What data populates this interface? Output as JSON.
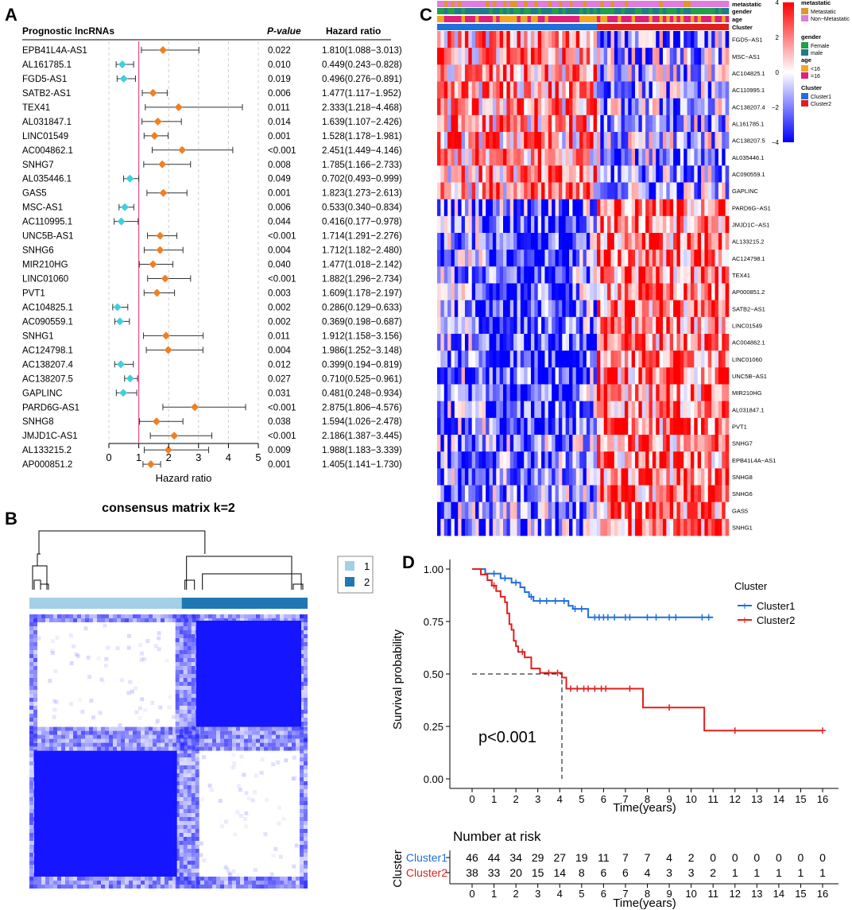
{
  "colors": {
    "orange": "#f07f23",
    "cyan": "#3ed0e0",
    "refline": "#e84b8a",
    "cluster1": "#1f6fdc",
    "cluster2": "#e0201f",
    "cons_light": "#a3d0e6",
    "cons_dark": "#1f78b4",
    "cons_block": "#1515ff",
    "heat_high": "#ff0000",
    "heat_low": "#0000ff",
    "ann_metastatic": "#e0962b",
    "ann_nonmetastatic": "#e07be0",
    "ann_female": "#1fa04b",
    "ann_male": "#1f7b8a",
    "ann_age_lt16": "#f5a623",
    "ann_age_ge16": "#e0207b"
  },
  "panel_labels": {
    "a": "A",
    "b": "B",
    "c": "C",
    "d": "D"
  },
  "chart_data": [
    {
      "type": "forest",
      "panel": "A",
      "header": {
        "name": "Prognostic lncRNAs",
        "pvalue": "P-value",
        "hr": "Hazard ratio"
      },
      "xlabel": "Hazard ratio",
      "xlim": [
        0,
        5
      ],
      "ticks": [
        "0",
        "1",
        "2",
        "3",
        "4",
        "5"
      ],
      "reference": 1,
      "rows": [
        {
          "name": "EPB41L4A-AS1",
          "p": "0.022",
          "hr_text": "1.810(1.088−3.013)",
          "hr": 1.81,
          "lo": 1.088,
          "hi": 3.013
        },
        {
          "name": "AL161785.1",
          "p": "0.010",
          "hr_text": "0.449(0.243−0.828)",
          "hr": 0.449,
          "lo": 0.243,
          "hi": 0.828
        },
        {
          "name": "FGD5-AS1",
          "p": "0.019",
          "hr_text": "0.496(0.276−0.891)",
          "hr": 0.496,
          "lo": 0.276,
          "hi": 0.891
        },
        {
          "name": "SATB2-AS1",
          "p": "0.006",
          "hr_text": "1.477(1.117−1.952)",
          "hr": 1.477,
          "lo": 1.117,
          "hi": 1.952
        },
        {
          "name": "TEX41",
          "p": "0.011",
          "hr_text": "2.333(1.218−4.468)",
          "hr": 2.333,
          "lo": 1.218,
          "hi": 4.468
        },
        {
          "name": "AL031847.1",
          "p": "0.014",
          "hr_text": "1.639(1.107−2.426)",
          "hr": 1.639,
          "lo": 1.107,
          "hi": 2.426
        },
        {
          "name": "LINC01549",
          "p": "0.001",
          "hr_text": "1.528(1.178−1.981)",
          "hr": 1.528,
          "lo": 1.178,
          "hi": 1.981
        },
        {
          "name": "AC004862.1",
          "p": "<0.001",
          "hr_text": "2.451(1.449−4.146)",
          "hr": 2.451,
          "lo": 1.449,
          "hi": 4.146
        },
        {
          "name": "SNHG7",
          "p": "0.008",
          "hr_text": "1.785(1.166−2.733)",
          "hr": 1.785,
          "lo": 1.166,
          "hi": 2.733
        },
        {
          "name": "AL035446.1",
          "p": "0.049",
          "hr_text": "0.702(0.493−0.999)",
          "hr": 0.702,
          "lo": 0.493,
          "hi": 0.999
        },
        {
          "name": "GAS5",
          "p": "0.001",
          "hr_text": "1.823(1.273−2.613)",
          "hr": 1.823,
          "lo": 1.273,
          "hi": 2.613
        },
        {
          "name": "MSC-AS1",
          "p": "0.006",
          "hr_text": "0.533(0.340−0.834)",
          "hr": 0.533,
          "lo": 0.34,
          "hi": 0.834
        },
        {
          "name": "AC110995.1",
          "p": "0.044",
          "hr_text": "0.416(0.177−0.978)",
          "hr": 0.416,
          "lo": 0.177,
          "hi": 0.978
        },
        {
          "name": "UNC5B-AS1",
          "p": "<0.001",
          "hr_text": "1.714(1.291−2.276)",
          "hr": 1.714,
          "lo": 1.291,
          "hi": 2.276
        },
        {
          "name": "SNHG6",
          "p": "0.004",
          "hr_text": "1.712(1.182−2.480)",
          "hr": 1.712,
          "lo": 1.182,
          "hi": 2.48
        },
        {
          "name": "MIR210HG",
          "p": "0.040",
          "hr_text": "1.477(1.018−2.142)",
          "hr": 1.477,
          "lo": 1.018,
          "hi": 2.142
        },
        {
          "name": "LINC01060",
          "p": "<0.001",
          "hr_text": "1.882(1.296−2.734)",
          "hr": 1.882,
          "lo": 1.296,
          "hi": 2.734
        },
        {
          "name": "PVT1",
          "p": "0.003",
          "hr_text": "1.609(1.178−2.197)",
          "hr": 1.609,
          "lo": 1.178,
          "hi": 2.197
        },
        {
          "name": "AC104825.1",
          "p": "0.002",
          "hr_text": "0.286(0.129−0.633)",
          "hr": 0.286,
          "lo": 0.129,
          "hi": 0.633
        },
        {
          "name": "AC090559.1",
          "p": "0.002",
          "hr_text": "0.369(0.198−0.687)",
          "hr": 0.369,
          "lo": 0.198,
          "hi": 0.687
        },
        {
          "name": "SNHG1",
          "p": "0.011",
          "hr_text": "1.912(1.158−3.156)",
          "hr": 1.912,
          "lo": 1.158,
          "hi": 3.156
        },
        {
          "name": "AC124798.1",
          "p": "0.004",
          "hr_text": "1.986(1.252−3.148)",
          "hr": 1.986,
          "lo": 1.252,
          "hi": 3.148
        },
        {
          "name": "AC138207.4",
          "p": "0.012",
          "hr_text": "0.399(0.194−0.819)",
          "hr": 0.399,
          "lo": 0.194,
          "hi": 0.819
        },
        {
          "name": "AC138207.5",
          "p": "0.027",
          "hr_text": "0.710(0.525−0.961)",
          "hr": 0.71,
          "lo": 0.525,
          "hi": 0.961
        },
        {
          "name": "GAPLINC",
          "p": "0.031",
          "hr_text": "0.481(0.248−0.934)",
          "hr": 0.481,
          "lo": 0.248,
          "hi": 0.934
        },
        {
          "name": "PARD6G-AS1",
          "p": "<0.001",
          "hr_text": "2.875(1.806−4.576)",
          "hr": 2.875,
          "lo": 1.806,
          "hi": 4.576
        },
        {
          "name": "SNHG8",
          "p": "0.038",
          "hr_text": "1.594(1.026−2.478)",
          "hr": 1.594,
          "lo": 1.026,
          "hi": 2.478
        },
        {
          "name": "JMJD1C-AS1",
          "p": "<0.001",
          "hr_text": "2.186(1.387−3.445)",
          "hr": 2.186,
          "lo": 1.387,
          "hi": 3.445
        },
        {
          "name": "AL133215.2",
          "p": "0.009",
          "hr_text": "1.988(1.183−3.339)",
          "hr": 1.988,
          "lo": 1.183,
          "hi": 3.339
        },
        {
          "name": "AP000851.2",
          "p": "0.001",
          "hr_text": "1.405(1.141−1.730)",
          "hr": 1.405,
          "lo": 1.141,
          "hi": 1.73
        }
      ]
    },
    {
      "type": "heatmap",
      "panel": "B",
      "title": "consensus matrix k=2",
      "legend": [
        "1",
        "2"
      ],
      "cluster_sizes": [
        46,
        38
      ]
    },
    {
      "type": "heatmap",
      "panel": "C",
      "genes": [
        "FGD5−AS1",
        "MSC−AS1",
        "AC104825.1",
        "AC110995.1",
        "AC138207.4",
        "AL161785.1",
        "AC138207.5",
        "AL035446.1",
        "AC090559.1",
        "GAPLINC",
        "PARD6G−AS1",
        "JMJD1C−AS1",
        "AL133215.2",
        "AC124798.1",
        "TEX41",
        "AP000851.2",
        "SATB2−AS1",
        "LINC01549",
        "AC004862.1",
        "LINC01060",
        "UNC5B−AS1",
        "MIR210HG",
        "AL031847.1",
        "PVT1",
        "SNHG7",
        "EPB41L4A−AS1",
        "SNHG8",
        "SNHG6",
        "GAS5",
        "SNHG1"
      ],
      "annotation_rows": [
        "metastatic",
        "gender",
        "age",
        "Cluster"
      ],
      "color_scale": {
        "max": 4,
        "ticks": [
          "4",
          "2",
          "0",
          "−2",
          "−4"
        ]
      },
      "legend": {
        "metastatic": {
          "title": "metastatic",
          "items": [
            "Metastatic",
            "Non−Metastatic"
          ]
        },
        "gender": {
          "title": "gender",
          "items": [
            "Female",
            "male"
          ]
        },
        "age": {
          "title": "age",
          "items": [
            "<16",
            "=16"
          ]
        },
        "cluster": {
          "title": "Cluster",
          "items": [
            "Cluster1",
            "Cluster2"
          ]
        }
      },
      "cluster_sizes": [
        46,
        38
      ]
    },
    {
      "type": "line",
      "subtype": "kaplan-meier",
      "panel": "D",
      "ylabel": "Survival probability",
      "xlabel": "Time(years)",
      "xlim": [
        0,
        16
      ],
      "ylim": [
        0,
        1
      ],
      "yticks": [
        "0.00",
        "0.25",
        "0.50",
        "0.75",
        "1.00"
      ],
      "xticks": [
        "0",
        "1",
        "2",
        "3",
        "4",
        "5",
        "6",
        "7",
        "8",
        "9",
        "10",
        "11",
        "12",
        "13",
        "14",
        "15",
        "16"
      ],
      "pvalue": "p<0.001",
      "legend_title": "Cluster",
      "median_survival_cluster2": 4.1,
      "series": [
        {
          "name": "Cluster1",
          "steps": [
            [
              0,
              1
            ],
            [
              0.6,
              0.978
            ],
            [
              1.3,
              0.956
            ],
            [
              1.8,
              0.935
            ],
            [
              2.2,
              0.913
            ],
            [
              2.4,
              0.89
            ],
            [
              2.6,
              0.868
            ],
            [
              2.8,
              0.848
            ],
            [
              4.0,
              0.848
            ],
            [
              4.4,
              0.825
            ],
            [
              4.6,
              0.81
            ],
            [
              5.3,
              0.77
            ],
            [
              11.0,
              0.77
            ]
          ],
          "censors": [
            [
              1.0,
              0.978
            ],
            [
              1.5,
              0.956
            ],
            [
              2.0,
              0.935
            ],
            [
              2.7,
              0.868
            ],
            [
              3.1,
              0.848
            ],
            [
              3.4,
              0.848
            ],
            [
              3.8,
              0.848
            ],
            [
              4.2,
              0.848
            ],
            [
              4.7,
              0.81
            ],
            [
              5.0,
              0.81
            ],
            [
              5.6,
              0.77
            ],
            [
              5.8,
              0.77
            ],
            [
              6.0,
              0.77
            ],
            [
              6.2,
              0.77
            ],
            [
              6.5,
              0.77
            ],
            [
              7.0,
              0.77
            ],
            [
              7.2,
              0.77
            ],
            [
              8.0,
              0.77
            ],
            [
              8.4,
              0.77
            ],
            [
              9.0,
              0.77
            ],
            [
              9.3,
              0.77
            ],
            [
              10.5,
              0.77
            ],
            [
              10.8,
              0.77
            ]
          ]
        },
        {
          "name": "Cluster2",
          "steps": [
            [
              0,
              1
            ],
            [
              0.4,
              0.974
            ],
            [
              0.7,
              0.947
            ],
            [
              0.9,
              0.921
            ],
            [
              1.1,
              0.895
            ],
            [
              1.3,
              0.868
            ],
            [
              1.5,
              0.842
            ],
            [
              1.6,
              0.789
            ],
            [
              1.7,
              0.737
            ],
            [
              1.8,
              0.71
            ],
            [
              1.9,
              0.658
            ],
            [
              2.0,
              0.632
            ],
            [
              2.1,
              0.605
            ],
            [
              2.4,
              0.579
            ],
            [
              2.7,
              0.526
            ],
            [
              3.1,
              0.505
            ],
            [
              4.1,
              0.483
            ],
            [
              4.3,
              0.43
            ],
            [
              7.8,
              0.34
            ],
            [
              10.6,
              0.23
            ],
            [
              16,
              0.23
            ]
          ],
          "censors": [
            [
              1.0,
              0.921
            ],
            [
              2.3,
              0.605
            ],
            [
              3.5,
              0.505
            ],
            [
              3.9,
              0.505
            ],
            [
              4.5,
              0.43
            ],
            [
              4.8,
              0.43
            ],
            [
              5.1,
              0.43
            ],
            [
              5.3,
              0.43
            ],
            [
              5.6,
              0.43
            ],
            [
              5.9,
              0.43
            ],
            [
              6.1,
              0.43
            ],
            [
              7.2,
              0.43
            ],
            [
              9.0,
              0.34
            ],
            [
              12.0,
              0.23
            ],
            [
              16,
              0.23
            ]
          ]
        }
      ],
      "risk_table": {
        "title": "Number at risk",
        "axis_title": "Cluster",
        "xlabel": "Time(years)",
        "rows": [
          {
            "name": "Cluster1",
            "values": [
              "46",
              "44",
              "34",
              "29",
              "27",
              "19",
              "11",
              "7",
              "7",
              "4",
              "2",
              "0",
              "0",
              "0",
              "0",
              "0",
              "0"
            ]
          },
          {
            "name": "Cluster2",
            "values": [
              "38",
              "33",
              "20",
              "15",
              "14",
              "8",
              "6",
              "6",
              "4",
              "3",
              "3",
              "2",
              "1",
              "1",
              "1",
              "1",
              "1"
            ]
          }
        ]
      }
    }
  ]
}
